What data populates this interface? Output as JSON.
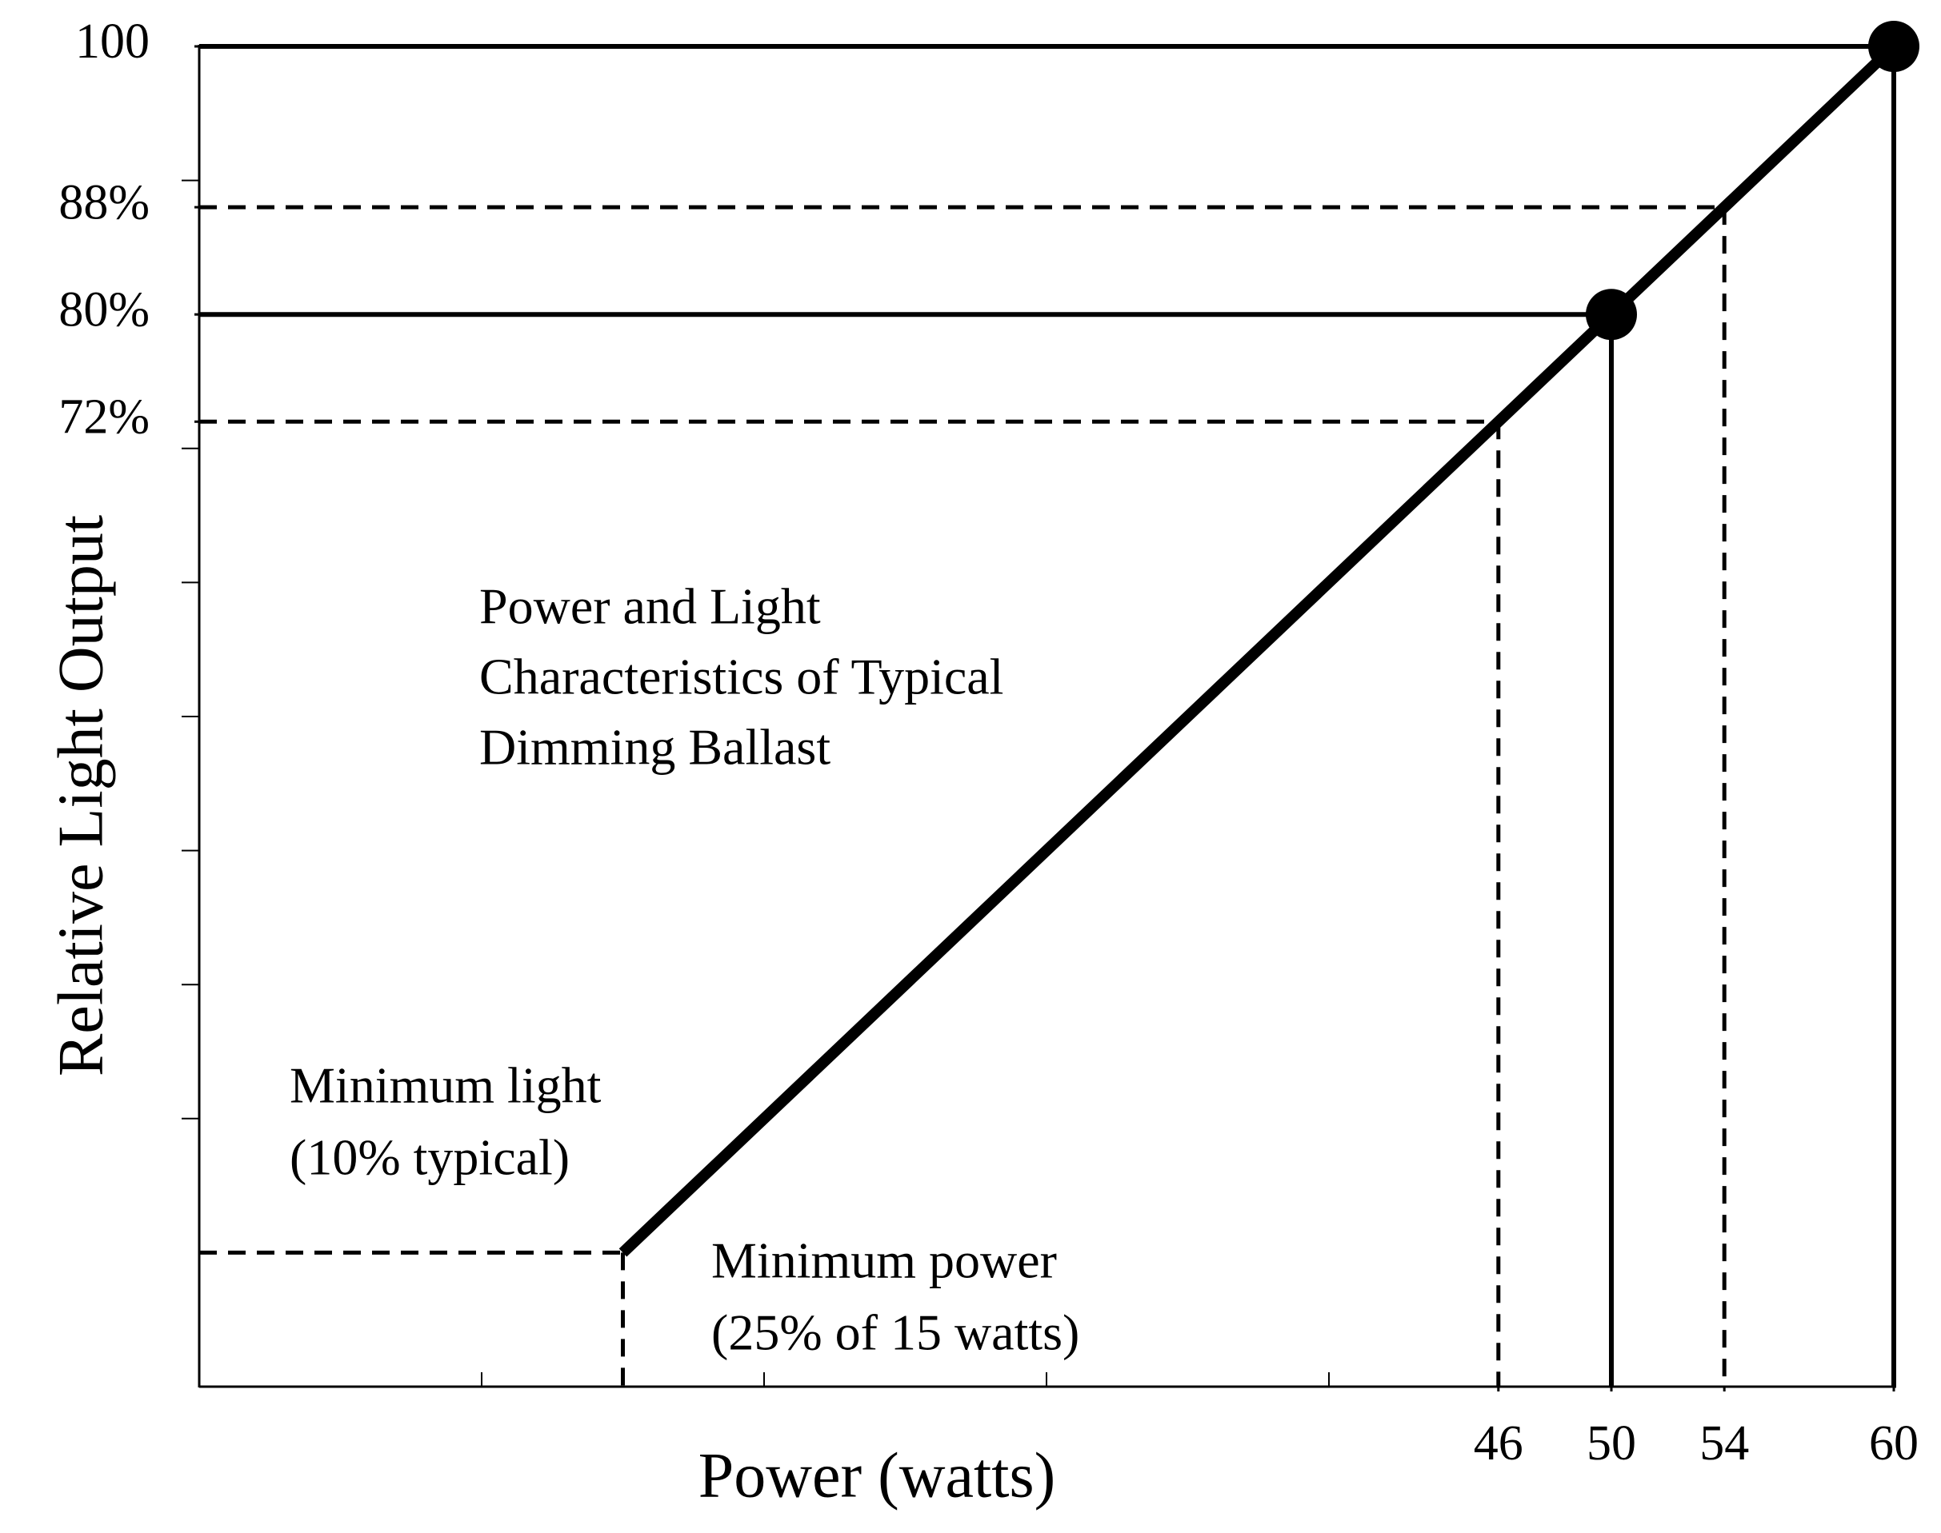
{
  "chart_data": {
    "type": "line",
    "title_lines": [
      "Power and Light",
      "Characteristics of Typical",
      "Dimming Ballast"
    ],
    "x_label": "Power (watts)",
    "y_label": "Relative Light Output",
    "annotations": [
      {
        "lines": [
          "Minimum light",
          "(10% typical)"
        ]
      },
      {
        "lines": [
          "Minimum power",
          "(25% of 15 watts)"
        ]
      }
    ],
    "x": [
      15,
      46,
      50,
      54,
      60
    ],
    "series": [
      {
        "color": "#000000",
        "values": [
          10,
          72,
          80,
          88,
          100
        ],
        "dots": [
          false,
          false,
          true,
          false,
          true
        ],
        "dashed": [
          true,
          true,
          false,
          true,
          false
        ]
      }
    ],
    "xlim": [
      0,
      60
    ],
    "ylim": [
      0,
      100
    ],
    "xticks": [
      46,
      50,
      54,
      60
    ],
    "yticks": [
      {
        "value": 72,
        "label": "72%"
      },
      {
        "value": 80,
        "label": "80%"
      },
      {
        "value": 88,
        "label": "88%"
      },
      100
    ],
    "xminor_ticks": [
      10,
      20,
      30,
      40
    ],
    "yminor_ticks": [
      20,
      30,
      40,
      50,
      60,
      70,
      90
    ]
  }
}
